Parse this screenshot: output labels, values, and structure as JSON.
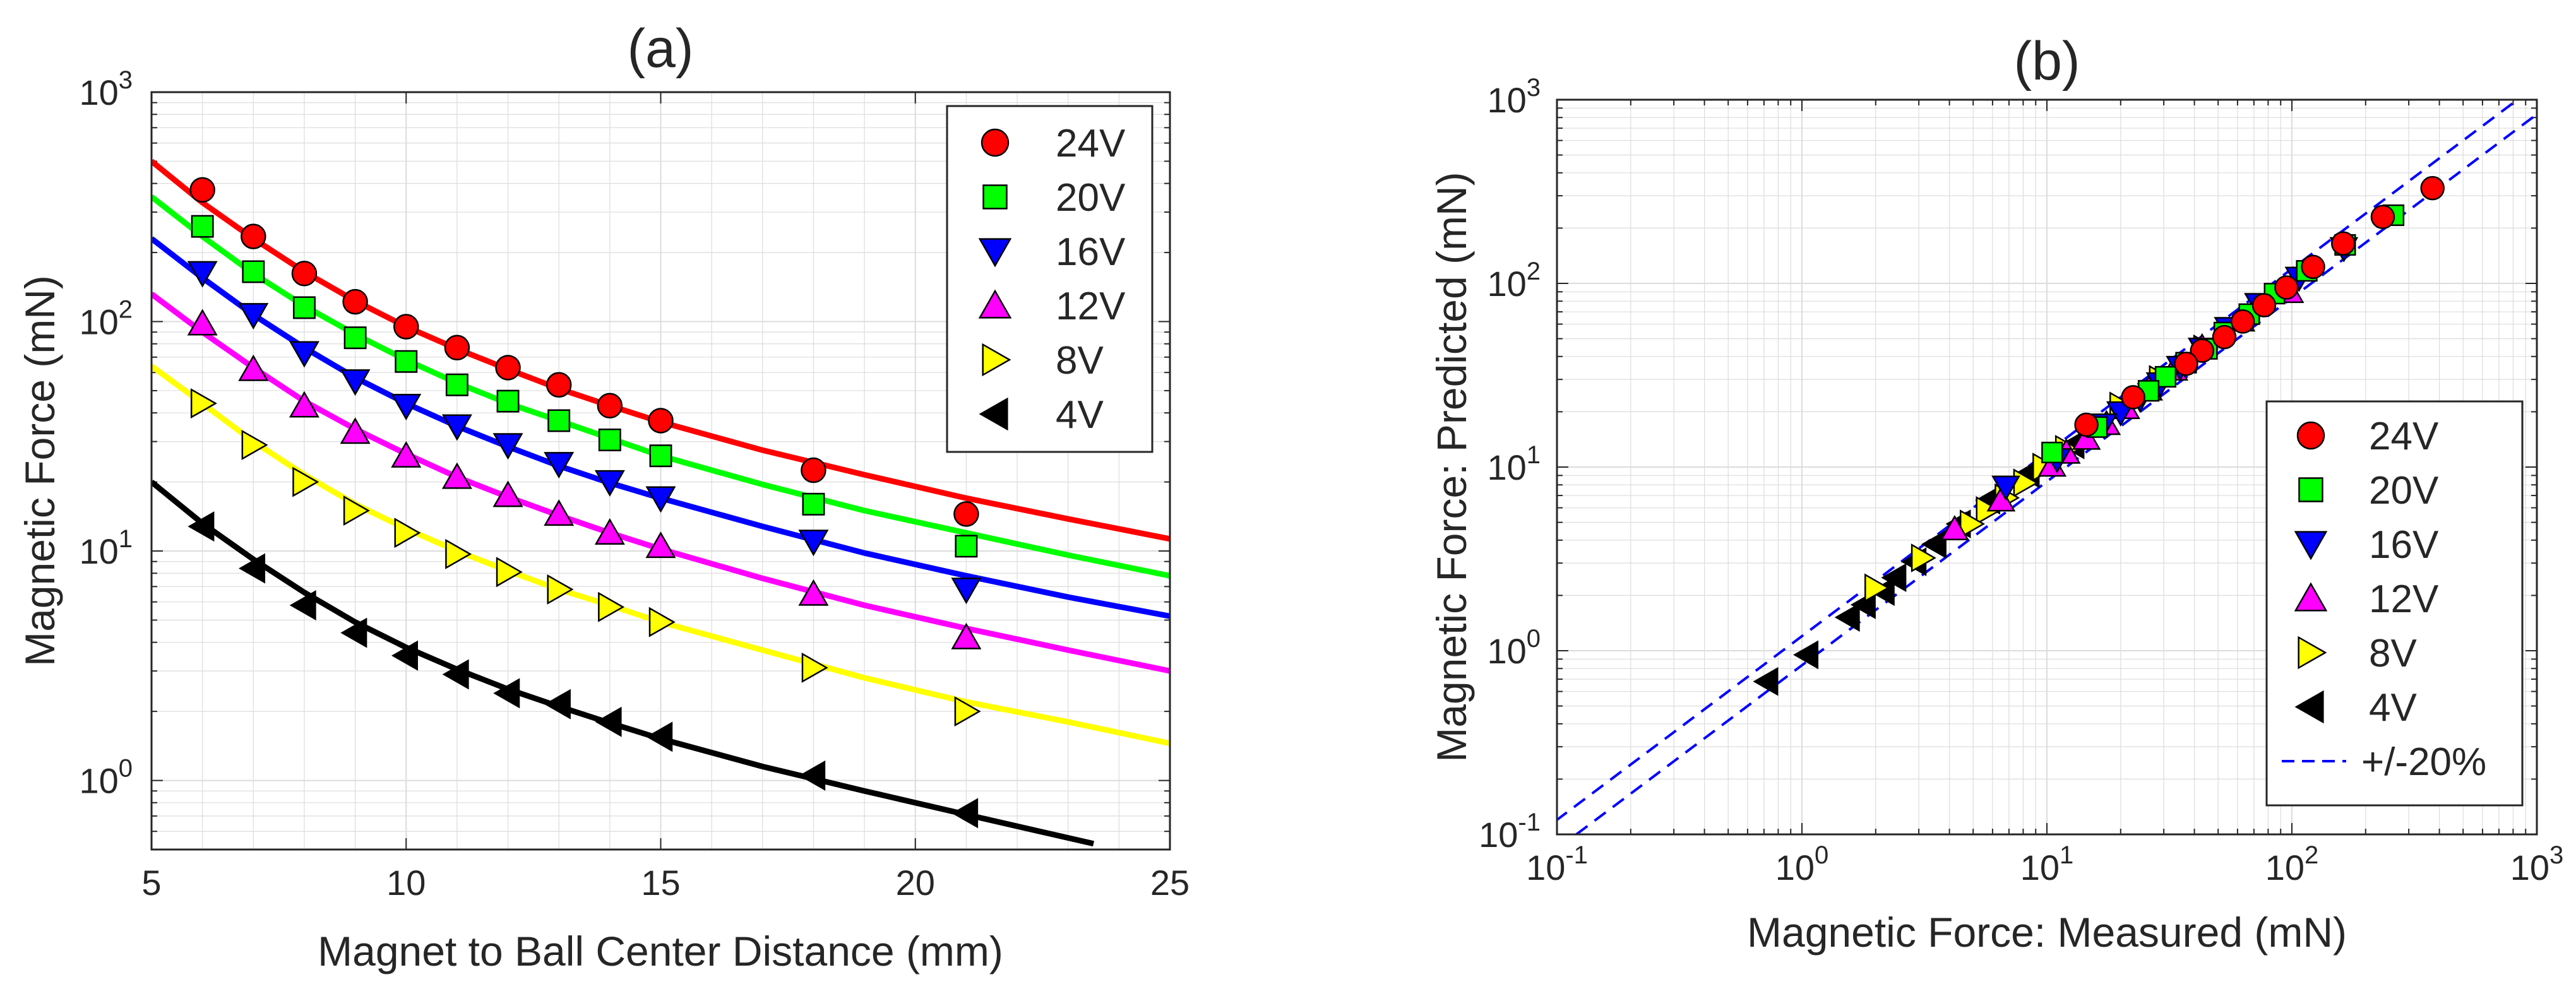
{
  "colors": {
    "24V": "#ff0000",
    "20V": "#00ff00",
    "16V": "#0000ff",
    "12V": "#ff00ff",
    "8V": "#ffff00",
    "4V": "#000000",
    "ref": "#0000ff",
    "grid": "#dcdcdc",
    "axis": "#262626"
  },
  "chart_data": [
    {
      "id": "a",
      "type": "scatter",
      "title": "(a)",
      "xlabel": "Magnet to Ball Center Distance (mm)",
      "ylabel": "Magnetic Force (mN)",
      "xscale": "linear",
      "yscale": "log",
      "xlim": [
        5,
        25
      ],
      "ylim": [
        0.5,
        1000
      ],
      "xticks": [
        5,
        10,
        15,
        20,
        25
      ],
      "xtick_labels": [
        "5",
        "10",
        "15",
        "20",
        "25"
      ],
      "yticks": [
        1,
        10,
        100,
        1000
      ],
      "ytick_labels": [
        {
          "base": "10",
          "exp": "0"
        },
        {
          "base": "10",
          "exp": "1"
        },
        {
          "base": "10",
          "exp": "2"
        },
        {
          "base": "10",
          "exp": "3"
        }
      ],
      "grid": true,
      "legend_position": "top-right",
      "series": [
        {
          "name": "24V",
          "marker": "circle",
          "color": "#ff0000",
          "x": [
            6,
            7,
            8,
            9,
            10,
            11,
            12,
            13,
            14,
            15,
            18,
            21
          ],
          "y": [
            375,
            235,
            162,
            122,
            95,
            77,
            63,
            53,
            43,
            37,
            22.5,
            14.5
          ],
          "fit": {
            "x": [
              5,
              6,
              7,
              8,
              9,
              10,
              11,
              12,
              13,
              14,
              15,
              17,
              19,
              21,
              23,
              25
            ],
            "y": [
              500,
              330,
              230,
              165,
              123,
              95,
              76,
              62,
              51,
              43,
              36.5,
              27.5,
              21.5,
              17,
              13.8,
              11.3
            ]
          }
        },
        {
          "name": "20V",
          "marker": "square",
          "color": "#00ff00",
          "x": [
            6,
            7,
            8,
            9,
            10,
            11,
            12,
            13,
            14,
            15,
            18,
            21
          ],
          "y": [
            260,
            165,
            115,
            85,
            67,
            53,
            45,
            37,
            30.5,
            26,
            16,
            10.5
          ],
          "fit": {
            "x": [
              5,
              6,
              7,
              8,
              9,
              10,
              11,
              12,
              13,
              14,
              15,
              17,
              19,
              21,
              23,
              25
            ],
            "y": [
              350,
              235,
              162,
              117,
              88,
              68,
              54,
              44,
              37,
              31,
              26,
              19.5,
              15,
              12,
              9.6,
              7.8
            ]
          }
        },
        {
          "name": "16V",
          "marker": "triangle-down",
          "color": "#0000ff",
          "x": [
            6,
            7,
            8,
            9,
            10,
            11,
            12,
            13,
            14,
            15,
            18,
            21
          ],
          "y": [
            163,
            107,
            73,
            55,
            43,
            35,
            29,
            24,
            20,
            17,
            11,
            6.8
          ],
          "fit": {
            "x": [
              5,
              6,
              7,
              8,
              9,
              10,
              11,
              12,
              13,
              14,
              15,
              17,
              19,
              21,
              23,
              25
            ],
            "y": [
              230,
              155,
              107,
              77,
              57,
              44,
              35,
              28.5,
              23.5,
              19.8,
              17,
              12.8,
              9.8,
              7.8,
              6.3,
              5.2
            ]
          }
        },
        {
          "name": "12V",
          "marker": "triangle-up",
          "color": "#ff00ff",
          "x": [
            6,
            7,
            8,
            9,
            10,
            11,
            12,
            13,
            14,
            15,
            18,
            21
          ],
          "y": [
            98,
            62,
            43,
            33,
            26,
            21,
            17.5,
            14.5,
            12,
            10.5,
            6.5,
            4.2
          ],
          "fit": {
            "x": [
              5,
              6,
              7,
              8,
              9,
              10,
              11,
              12,
              13,
              14,
              15,
              17,
              19,
              21,
              23,
              25
            ],
            "y": [
              132,
              90,
              63,
              45,
              34,
              26.5,
              21,
              17.2,
              14.3,
              12,
              10.2,
              7.6,
              5.8,
              4.6,
              3.7,
              3
            ]
          }
        },
        {
          "name": "8V",
          "marker": "triangle-right",
          "color": "#ffff00",
          "x": [
            6,
            7,
            8,
            9,
            10,
            11,
            12,
            13,
            14,
            15,
            18,
            21
          ],
          "y": [
            44,
            29,
            20,
            15,
            12,
            9.7,
            8.1,
            6.8,
            5.7,
            4.9,
            3.1,
            2
          ],
          "fit": {
            "x": [
              5,
              6,
              7,
              8,
              9,
              10,
              11,
              12,
              13,
              14,
              15,
              17,
              19,
              21,
              23,
              25
            ],
            "y": [
              64,
              44,
              30,
              21.5,
              16,
              12.5,
              10,
              8.2,
              6.8,
              5.8,
              4.9,
              3.7,
              2.8,
              2.2,
              1.8,
              1.45
            ]
          }
        },
        {
          "name": "4V",
          "marker": "triangle-left",
          "color": "#000000",
          "x": [
            6,
            7,
            8,
            9,
            10,
            11,
            12,
            13,
            14,
            15,
            18,
            21
          ],
          "y": [
            12.8,
            8.4,
            5.8,
            4.4,
            3.5,
            2.9,
            2.4,
            2.15,
            1.8,
            1.55,
            1.05,
            0.72
          ],
          "fit": {
            "x": [
              5,
              6,
              7,
              8,
              9,
              10,
              11,
              12,
              13,
              14,
              15,
              17,
              19,
              21,
              23.5
            ],
            "y": [
              20,
              13.2,
              9.2,
              6.6,
              4.9,
              3.8,
              3.05,
              2.5,
              2.1,
              1.78,
              1.52,
              1.15,
              0.9,
              0.71,
              0.53
            ]
          }
        }
      ]
    },
    {
      "id": "b",
      "type": "scatter",
      "title": "(b)",
      "xlabel": "Magnetic Force: Measured (mN)",
      "ylabel": "Magnetic Force: Predicted (mN)",
      "xscale": "log",
      "yscale": "log",
      "xlim": [
        0.1,
        1000
      ],
      "ylim": [
        0.1,
        1000
      ],
      "xticks": [
        0.1,
        1,
        10,
        100,
        1000
      ],
      "xtick_labels": [
        {
          "base": "10",
          "exp": "-1"
        },
        {
          "base": "10",
          "exp": "0"
        },
        {
          "base": "10",
          "exp": "1"
        },
        {
          "base": "10",
          "exp": "2"
        },
        {
          "base": "10",
          "exp": "3"
        }
      ],
      "yticks": [
        0.1,
        1,
        10,
        100,
        1000
      ],
      "ytick_labels": [
        {
          "base": "10",
          "exp": "-1"
        },
        {
          "base": "10",
          "exp": "0"
        },
        {
          "base": "10",
          "exp": "1"
        },
        {
          "base": "10",
          "exp": "2"
        },
        {
          "base": "10",
          "exp": "3"
        }
      ],
      "grid": true,
      "legend_position": "bottom-right",
      "reference_lines": {
        "name": "+/-20%",
        "style": "dashed",
        "color": "#0000ff",
        "factors": [
          1.2,
          0.8333
        ]
      },
      "series": [
        {
          "name": "24V",
          "marker": "circle",
          "color": "#ff0000",
          "x": [
            375,
            235,
            162,
            122,
            95,
            77,
            63,
            53,
            43,
            37,
            22.5,
            14.5
          ],
          "y": [
            330,
            230,
            165,
            123,
            95,
            76,
            62,
            51,
            43,
            36.5,
            24,
            17
          ]
        },
        {
          "name": "20V",
          "marker": "square",
          "color": "#00ff00",
          "x": [
            260,
            165,
            115,
            85,
            67,
            53,
            45,
            37,
            30.5,
            26,
            16,
            10.5
          ],
          "y": [
            235,
            162,
            117,
            88,
            68,
            54,
            44,
            37,
            31,
            26,
            16.5,
            12
          ]
        },
        {
          "name": "16V",
          "marker": "triangle-down",
          "color": "#0000ff",
          "x": [
            163,
            107,
            73,
            55,
            43,
            35,
            29,
            24,
            20,
            17,
            11,
            6.8
          ],
          "y": [
            155,
            107,
            77,
            57,
            44,
            35,
            28.5,
            23.5,
            19.8,
            17,
            11,
            7.8
          ]
        },
        {
          "name": "12V",
          "marker": "triangle-up",
          "color": "#ff00ff",
          "x": [
            98,
            62,
            43,
            33,
            26,
            21,
            17.5,
            14.5,
            12,
            10.5,
            6.5,
            4.2
          ],
          "y": [
            90,
            63,
            45,
            34,
            26.5,
            21,
            17.2,
            14.3,
            12,
            10.2,
            6.6,
            4.6
          ]
        },
        {
          "name": "8V",
          "marker": "triangle-right",
          "color": "#ffff00",
          "x": [
            44,
            29,
            20,
            15,
            12,
            9.7,
            8.1,
            6.8,
            5.7,
            4.9,
            3.1,
            2
          ],
          "y": [
            44,
            30,
            21.5,
            16,
            12.5,
            10,
            8.2,
            6.8,
            5.8,
            4.9,
            3.2,
            2.2
          ]
        },
        {
          "name": "4V",
          "marker": "triangle-left",
          "color": "#000000",
          "x": [
            12.8,
            8.4,
            5.8,
            4.4,
            3.5,
            2.9,
            2.4,
            2.15,
            1.8,
            1.55,
            1.05,
            0.72
          ],
          "y": [
            13.2,
            9.2,
            6.6,
            4.9,
            3.8,
            3.05,
            2.5,
            2.1,
            1.78,
            1.52,
            0.95,
            0.68
          ]
        }
      ]
    }
  ]
}
